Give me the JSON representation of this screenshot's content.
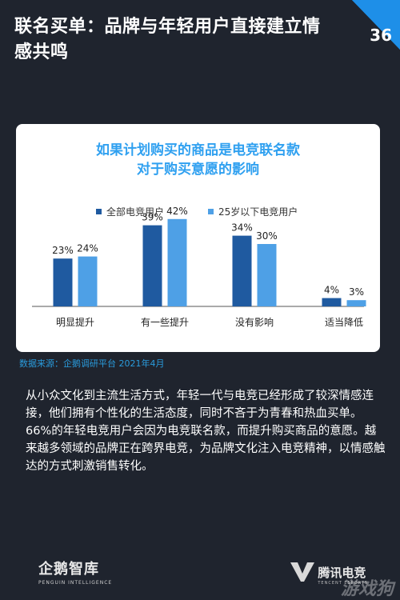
{
  "header": {
    "title": "联名买单：品牌与年轻用户直接建立情感共鸣",
    "page_number": "36"
  },
  "chart_data": {
    "type": "bar",
    "title_lines": [
      "如果计划购买的商品是电竞联名款",
      "对于购买意愿的影响"
    ],
    "categories": [
      "明显提升",
      "有一些提升",
      "没有影响",
      "适当降低"
    ],
    "series": [
      {
        "name": "全部电竞用户",
        "values": [
          23,
          39,
          34,
          4
        ],
        "labels": [
          "23%",
          "39%",
          "34%",
          "4%"
        ],
        "color": "#1f5aa0"
      },
      {
        "name": "25岁以下电竞用户",
        "values": [
          24,
          42,
          30,
          3
        ],
        "labels": [
          "24%",
          "42%",
          "30%",
          "3%"
        ],
        "color": "#4ea0e6"
      }
    ],
    "ylim": [
      0,
      50
    ],
    "grid": false,
    "legend": "top"
  },
  "source": "数据来源：企鹅调研平台 2021年4月",
  "body_text": "从小众文化到主流生活方式，年轻一代与电竞已经形成了较深情感连接，他们拥有个性化的生活态度，同时不吝于为青春和热血买单。66%的年轻电竞用户会因为电竞联名款，而提升购买商品的意愿。越来越多领域的品牌正在跨界电竞，为品牌文化注入电竞精神，以情感触达的方式刺激销售转化。",
  "footer": {
    "left_brand": "企鹅智库",
    "left_sub": "PENGUIN INTELLIGENCE",
    "right_brand": "腾讯电竞",
    "right_sub": "TENCENT ESPORTS",
    "watermark": "游戏狗"
  },
  "colors": {
    "background": "#1f242e",
    "accent": "#1e8fe8",
    "chart_title": "#2fa0f0"
  }
}
